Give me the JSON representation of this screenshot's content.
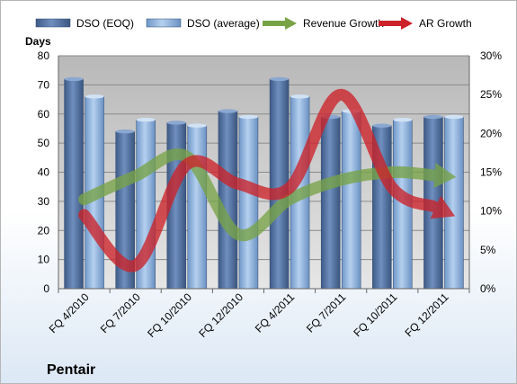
{
  "chart_data": {
    "type": "bar",
    "company": "Pentair",
    "y_left_label": "Days",
    "y_left_lim": [
      0,
      80
    ],
    "y_left_ticks": [
      "0",
      "10",
      "20",
      "30",
      "40",
      "50",
      "60",
      "70",
      "80"
    ],
    "y_right_lim": [
      0,
      30
    ],
    "y_right_ticks": [
      "0%",
      "5%",
      "10%",
      "15%",
      "20%",
      "25%",
      "30%"
    ],
    "categories": [
      "FQ 4/2010",
      "FQ 7/2010",
      "FQ 10/2010",
      "FQ 12/2010",
      "FQ 4/2011",
      "FQ 7/2011",
      "FQ 10/2011",
      "FQ 12/2011"
    ],
    "series": [
      {
        "name": "DSO (EOQ)",
        "type": "bar",
        "axis": "left",
        "color": "#4f6f9f",
        "values": [
          72,
          54,
          57,
          61,
          72,
          59,
          56,
          59
        ]
      },
      {
        "name": "DSO (average)",
        "type": "bar",
        "axis": "left",
        "color": "#8db3e2",
        "values": [
          66,
          58,
          56,
          59,
          66,
          61,
          58,
          59
        ]
      },
      {
        "name": "Revenue Growth",
        "type": "line",
        "axis": "right",
        "unit": "%",
        "color": "#77a346",
        "values": [
          11.5,
          14.5,
          17,
          7,
          11.5,
          14,
          15,
          14.5
        ]
      },
      {
        "name": "AR Growth",
        "type": "line",
        "axis": "right",
        "unit": "%",
        "color": "#cc2229",
        "values": [
          9.5,
          3,
          16,
          13.5,
          13,
          25,
          13,
          10
        ]
      }
    ],
    "grid": true,
    "legend_position": "top"
  }
}
